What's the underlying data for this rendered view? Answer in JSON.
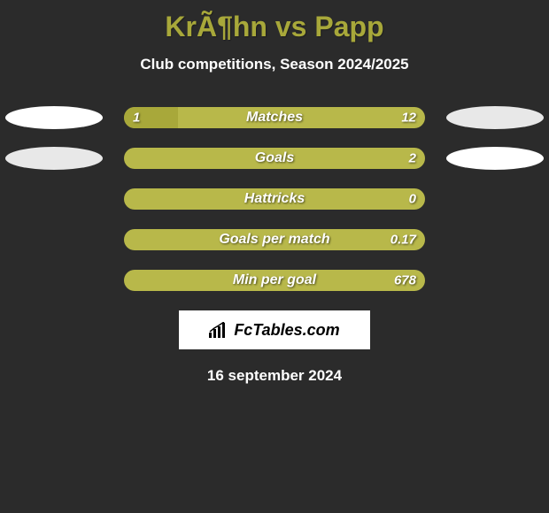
{
  "title": "KrÃ¶hn vs Papp",
  "subtitle": "Club competitions, Season 2024/2025",
  "colors": {
    "left_fill": "#a8a83a",
    "right_fill": "#b8b84a",
    "bar_bg": "#b8b84a",
    "ellipse_left1": "#ffffff",
    "ellipse_left2": "#e8e8e8",
    "ellipse_right1": "#e8e8e8",
    "ellipse_right2": "#ffffff",
    "title_color": "#a8a83a",
    "text_color": "#ffffff",
    "background": "#2b2b2b"
  },
  "ellipses": {
    "row0_left": "#ffffff",
    "row0_right": "#e8e8e8",
    "row1_left": "#e8e8e8",
    "row1_right": "#ffffff"
  },
  "rows": [
    {
      "label": "Matches",
      "left_val": "1",
      "right_val": "12",
      "left_pct": 18,
      "right_pct": 82,
      "left_color": "#a8a83a",
      "right_color": "#b8b84a",
      "has_ellipses": true
    },
    {
      "label": "Goals",
      "left_val": "",
      "right_val": "2",
      "left_pct": 0,
      "right_pct": 100,
      "left_color": "#a8a83a",
      "right_color": "#b8b84a",
      "has_ellipses": true
    },
    {
      "label": "Hattricks",
      "left_val": "",
      "right_val": "0",
      "left_pct": 0,
      "right_pct": 100,
      "left_color": "#a8a83a",
      "right_color": "#b8b84a",
      "has_ellipses": false
    },
    {
      "label": "Goals per match",
      "left_val": "",
      "right_val": "0.17",
      "left_pct": 0,
      "right_pct": 100,
      "left_color": "#a8a83a",
      "right_color": "#b8b84a",
      "has_ellipses": false
    },
    {
      "label": "Min per goal",
      "left_val": "",
      "right_val": "678",
      "left_pct": 0,
      "right_pct": 100,
      "left_color": "#a8a83a",
      "right_color": "#b8b84a",
      "has_ellipses": false
    }
  ],
  "logo_text": "FcTables.com",
  "date": "16 september 2024"
}
